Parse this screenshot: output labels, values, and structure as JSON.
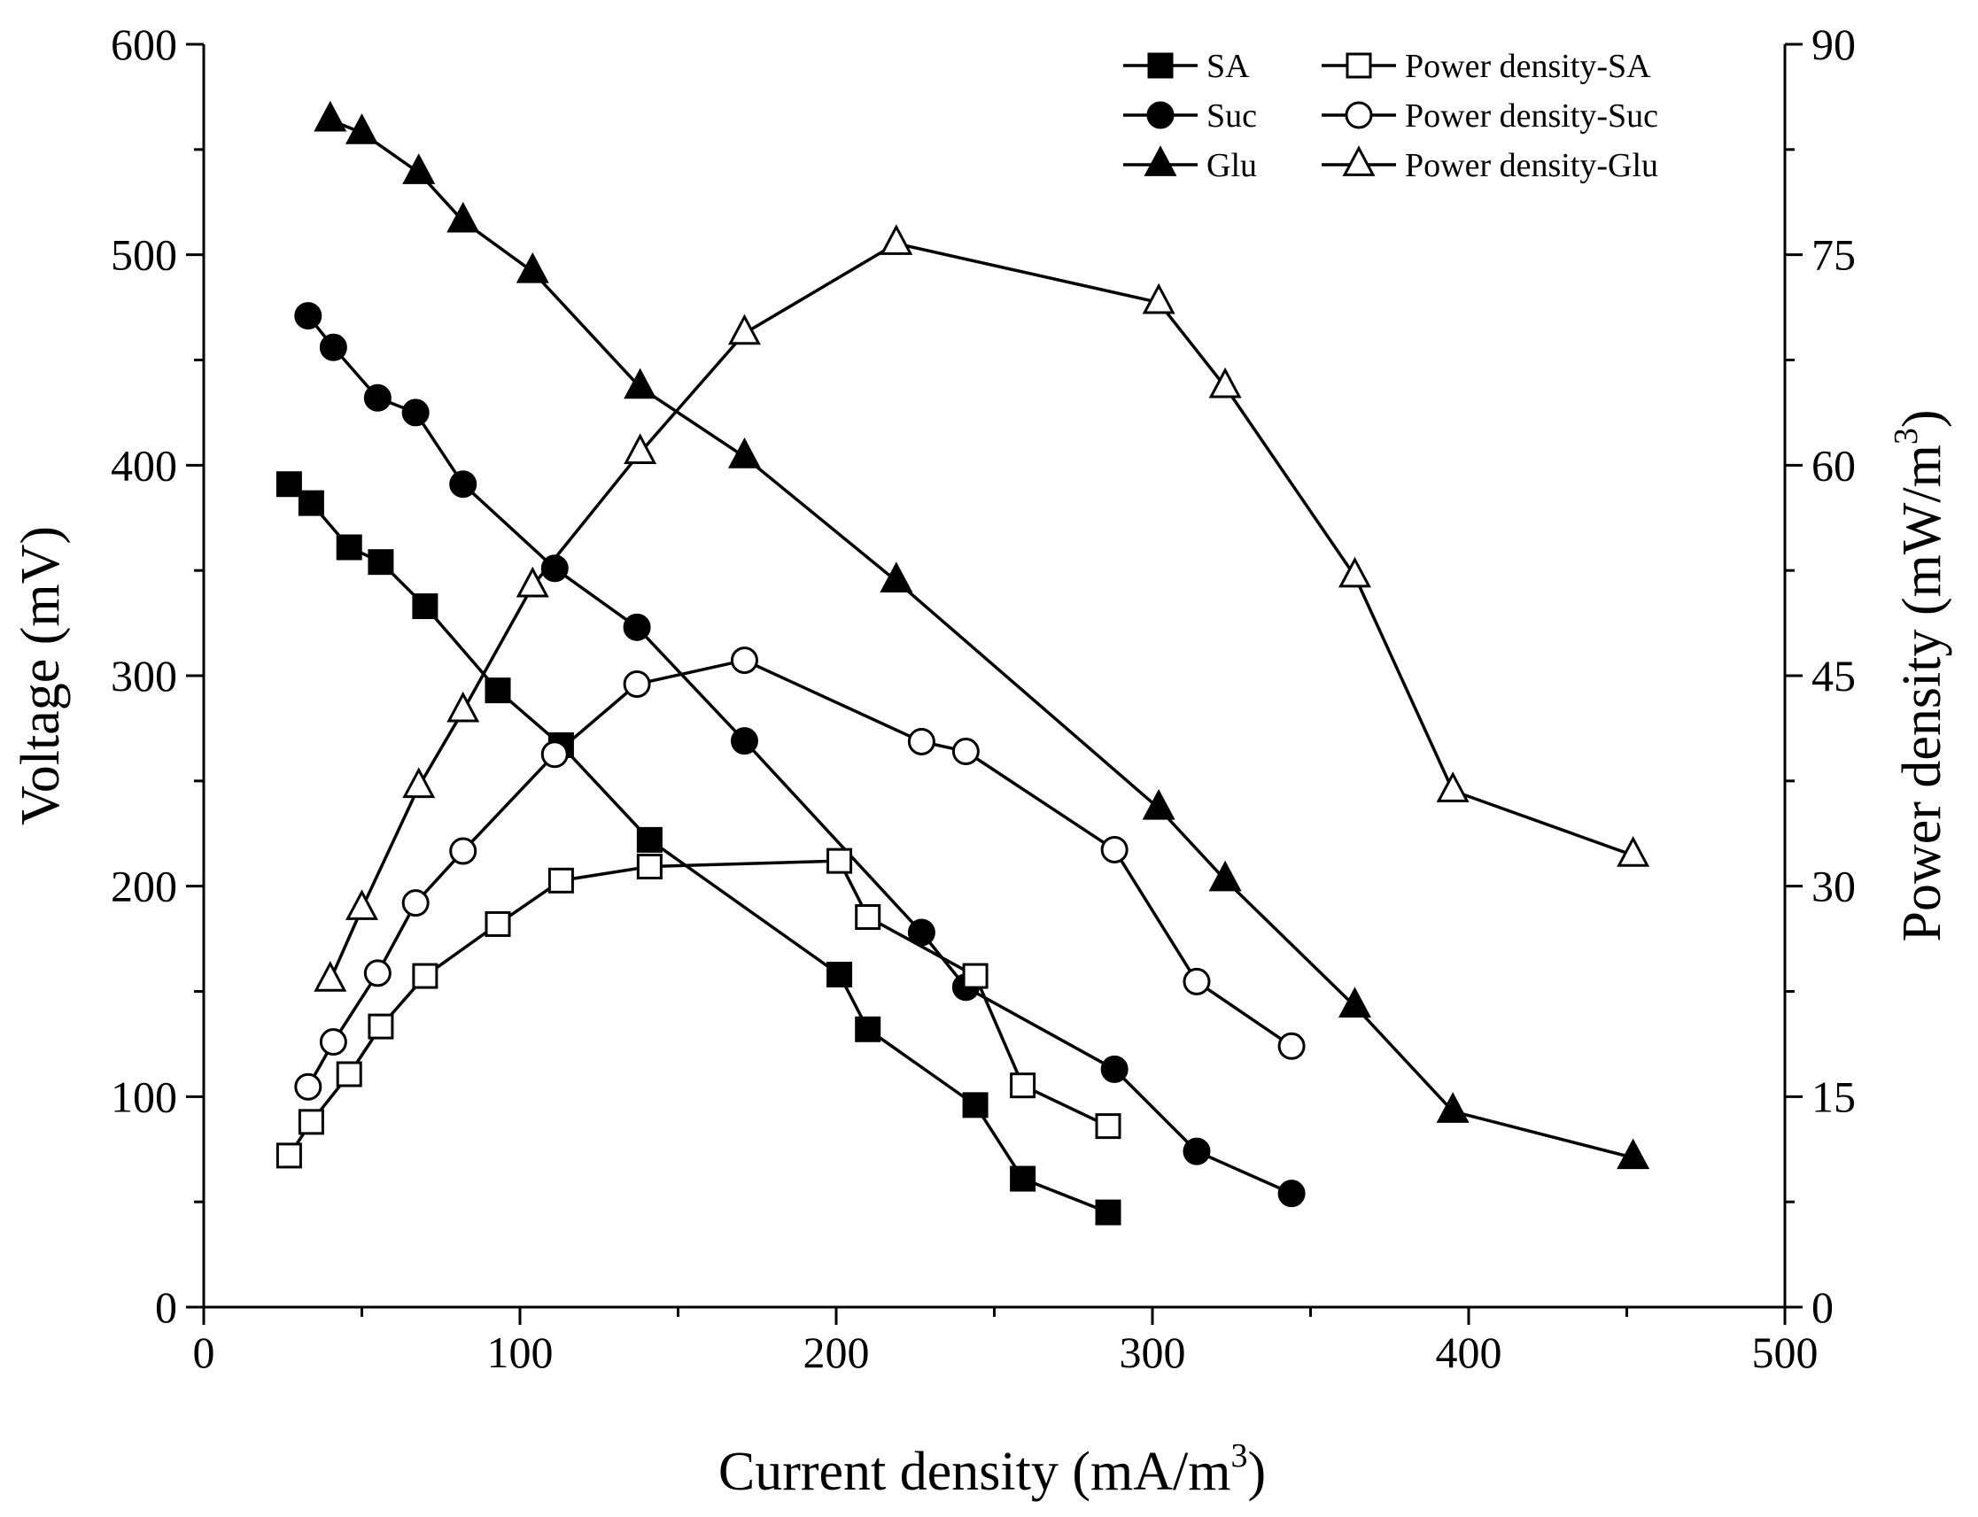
{
  "chart_data": {
    "type": "line",
    "title": "",
    "xlabel": "Current density (mA/m",
    "xlabel_sup": "3",
    "xlabel_end": ")",
    "ylabel_left": "Voltage (mV)",
    "ylabel_right": "Power density (mW/m",
    "ylabel_right_sup": "3",
    "ylabel_right_end": ")",
    "xlim": [
      0,
      500
    ],
    "ylim_left": [
      0,
      600
    ],
    "ylim_right": [
      0,
      90
    ],
    "x_ticks": [
      "0",
      "100",
      "200",
      "300",
      "400",
      "500"
    ],
    "y_left_ticks": [
      "0",
      "100",
      "200",
      "300",
      "400",
      "500",
      "600"
    ],
    "y_right_ticks": [
      "0",
      "15",
      "30",
      "45",
      "60",
      "75",
      "90"
    ],
    "legend_position": "top-right",
    "series": [
      {
        "name": "SA",
        "axis": "left",
        "marker": "square",
        "filled": true,
        "x": [
          27,
          34,
          46,
          56,
          70,
          93,
          113,
          141,
          201,
          210,
          244,
          259,
          286
        ],
        "y": [
          391,
          382,
          361,
          354,
          333,
          293,
          267,
          222,
          158,
          132,
          96,
          61,
          45
        ]
      },
      {
        "name": "Suc",
        "axis": "left",
        "marker": "circle",
        "filled": true,
        "x": [
          33,
          41,
          55,
          67,
          82,
          111,
          137,
          171,
          227,
          241,
          288,
          314,
          344
        ],
        "y": [
          471,
          456,
          432,
          425,
          391,
          351,
          323,
          269,
          178,
          152,
          113,
          74,
          54
        ]
      },
      {
        "name": "Glu",
        "axis": "left",
        "marker": "triangle",
        "filled": true,
        "x": [
          40,
          50,
          68,
          82,
          104,
          138,
          171,
          219,
          302,
          323,
          364,
          395,
          452
        ],
        "y": [
          564,
          558,
          539,
          516,
          492,
          437,
          404,
          345,
          237,
          203,
          143,
          93,
          71
        ]
      },
      {
        "name": "Power density-SA",
        "axis": "right",
        "marker": "square",
        "filled": false,
        "x": [
          27,
          34,
          46,
          56,
          70,
          93,
          113,
          141,
          201,
          210,
          244,
          259,
          286
        ],
        "y": [
          10.8,
          13.2,
          16.6,
          20.0,
          23.6,
          27.3,
          30.4,
          31.4,
          31.8,
          27.8,
          23.6,
          15.8,
          12.9
        ]
      },
      {
        "name": "Power density-Suc",
        "axis": "right",
        "marker": "circle",
        "filled": false,
        "x": [
          33,
          41,
          55,
          67,
          82,
          111,
          137,
          171,
          227,
          241,
          288,
          314,
          344
        ],
        "y": [
          15.7,
          18.9,
          23.8,
          28.8,
          32.5,
          39.4,
          44.4,
          46.1,
          40.3,
          39.6,
          32.6,
          23.2,
          18.6
        ]
      },
      {
        "name": "Power density-Glu",
        "axis": "right",
        "marker": "triangle",
        "filled": false,
        "x": [
          40,
          50,
          68,
          82,
          104,
          138,
          171,
          219,
          302,
          323,
          364,
          395,
          452
        ],
        "y": [
          23.3,
          28.4,
          37.1,
          42.5,
          51.4,
          60.9,
          69.4,
          75.8,
          71.6,
          65.6,
          52.1,
          36.8,
          32.2
        ]
      }
    ]
  },
  "colors": {
    "ink": "#000000",
    "background": "#ffffff"
  }
}
